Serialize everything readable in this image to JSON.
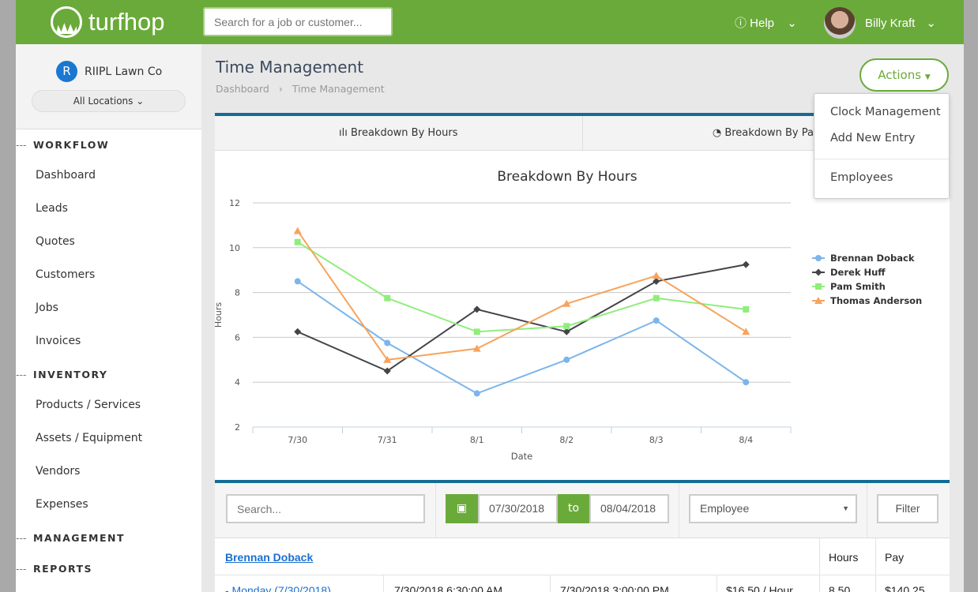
{
  "header": {
    "logo": "turfhop",
    "search_placeholder": "Search for a job or customer...",
    "help": "Help",
    "user": "Billy Kraft"
  },
  "sidebar": {
    "company": "RIIPL Lawn Co",
    "company_initial": "R",
    "location": "All Locations",
    "sections": [
      {
        "label": "WORKFLOW",
        "items": [
          "Dashboard",
          "Leads",
          "Quotes",
          "Customers",
          "Jobs",
          "Invoices"
        ]
      },
      {
        "label": "INVENTORY",
        "items": [
          "Products / Services",
          "Assets / Equipment",
          "Vendors",
          "Expenses"
        ]
      },
      {
        "label": "MANAGEMENT",
        "items": []
      },
      {
        "label": "REPORTS",
        "items": []
      }
    ]
  },
  "page": {
    "title": "Time Management",
    "breadcrumb": [
      "Dashboard",
      "Time Management"
    ],
    "actions": "Actions"
  },
  "actions_menu": [
    "Clock Management",
    "Add New Entry",
    "Employees"
  ],
  "tabs": [
    "Breakdown By Hours",
    "Breakdown By Pay"
  ],
  "chart_data": {
    "type": "line",
    "title": "Breakdown By Hours",
    "xlabel": "Date",
    "ylabel": "Hours",
    "ylim": [
      2,
      12
    ],
    "yticks": [
      2,
      4,
      6,
      8,
      10,
      12
    ],
    "grid": true,
    "legend": "right",
    "categories": [
      "7/30",
      "7/31",
      "8/1",
      "8/2",
      "8/3",
      "8/4"
    ],
    "series": [
      {
        "name": "Brennan Doback",
        "color": "#7cb5ec",
        "marker": "circle",
        "values": [
          8.5,
          5.75,
          3.5,
          5,
          6.75,
          4
        ]
      },
      {
        "name": "Derek Huff",
        "color": "#434348",
        "marker": "diamond",
        "values": [
          6.25,
          4.5,
          7.25,
          6.25,
          8.5,
          9.25
        ]
      },
      {
        "name": "Pam Smith",
        "color": "#90ed7d",
        "marker": "square",
        "values": [
          10.25,
          7.75,
          6.25,
          6.5,
          7.75,
          7.25
        ]
      },
      {
        "name": "Thomas Anderson",
        "color": "#f7a35c",
        "marker": "triangle",
        "values": [
          10.75,
          5,
          5.5,
          7.5,
          8.75,
          6.25
        ]
      }
    ]
  },
  "filters": {
    "search_placeholder": "Search...",
    "from": "07/30/2018",
    "to_label": "to",
    "to": "08/04/2018",
    "employee": "Employee",
    "filter": "Filter"
  },
  "table": {
    "employee": "Brennan Doback",
    "headers": [
      "Hours",
      "Pay"
    ],
    "row": [
      "- Monday (7/30/2018)",
      "7/30/2018 6:30:00 AM",
      "7/30/2018 3:00:00 PM",
      "$16.50 / Hour",
      "8.50",
      "$140.25"
    ]
  }
}
